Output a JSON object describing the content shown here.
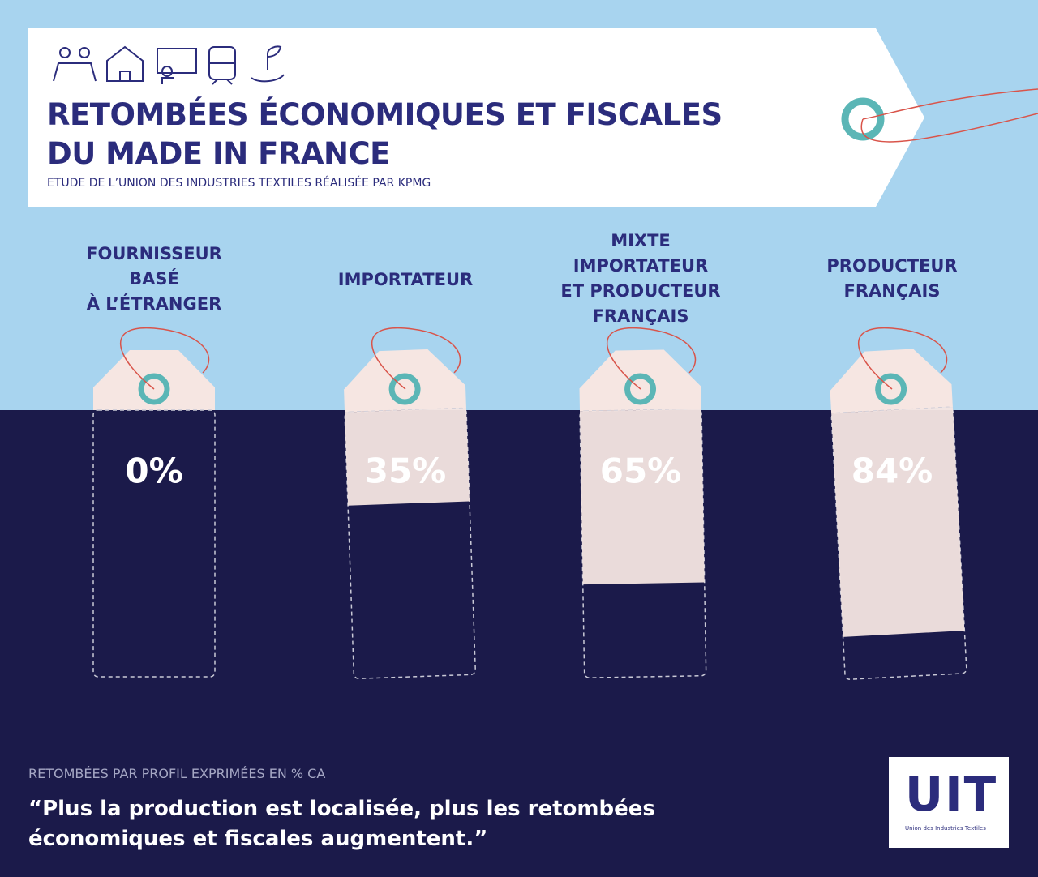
{
  "chart_data": {
    "type": "bar",
    "title": "RETOMBÉES ÉCONOMIQUES ET FISCALES\nDU MADE IN FRANCE",
    "subtitle": "ETUDE DE L’UNION DES INDUSTRIES TEXTILES RÉALISÉE PAR KPMG",
    "categories": [
      "FOURNISSEUR\nBASÉ\nÀ L’ÉTRANGER",
      "IMPORTATEUR",
      "MIXTE\nIMPORTATEUR\nET PRODUCTEUR\nFRANÇAIS",
      "PRODUCTEUR\nFRANÇAIS"
    ],
    "values": [
      0,
      35,
      65,
      84
    ],
    "value_labels": [
      "0%",
      "35%",
      "65%",
      "84%"
    ],
    "color": "#f6e6e2",
    "ylim": [
      0,
      100
    ],
    "note": "RETOMBÉES PAR PROFIL EXPRIMÉES EN % CA",
    "quote": "“Plus la production est localisée, plus les retombées\néconomiques et fiscales augmentent.”",
    "logo": {
      "name": "UIT",
      "caption": "Union des Industries Textiles"
    }
  }
}
